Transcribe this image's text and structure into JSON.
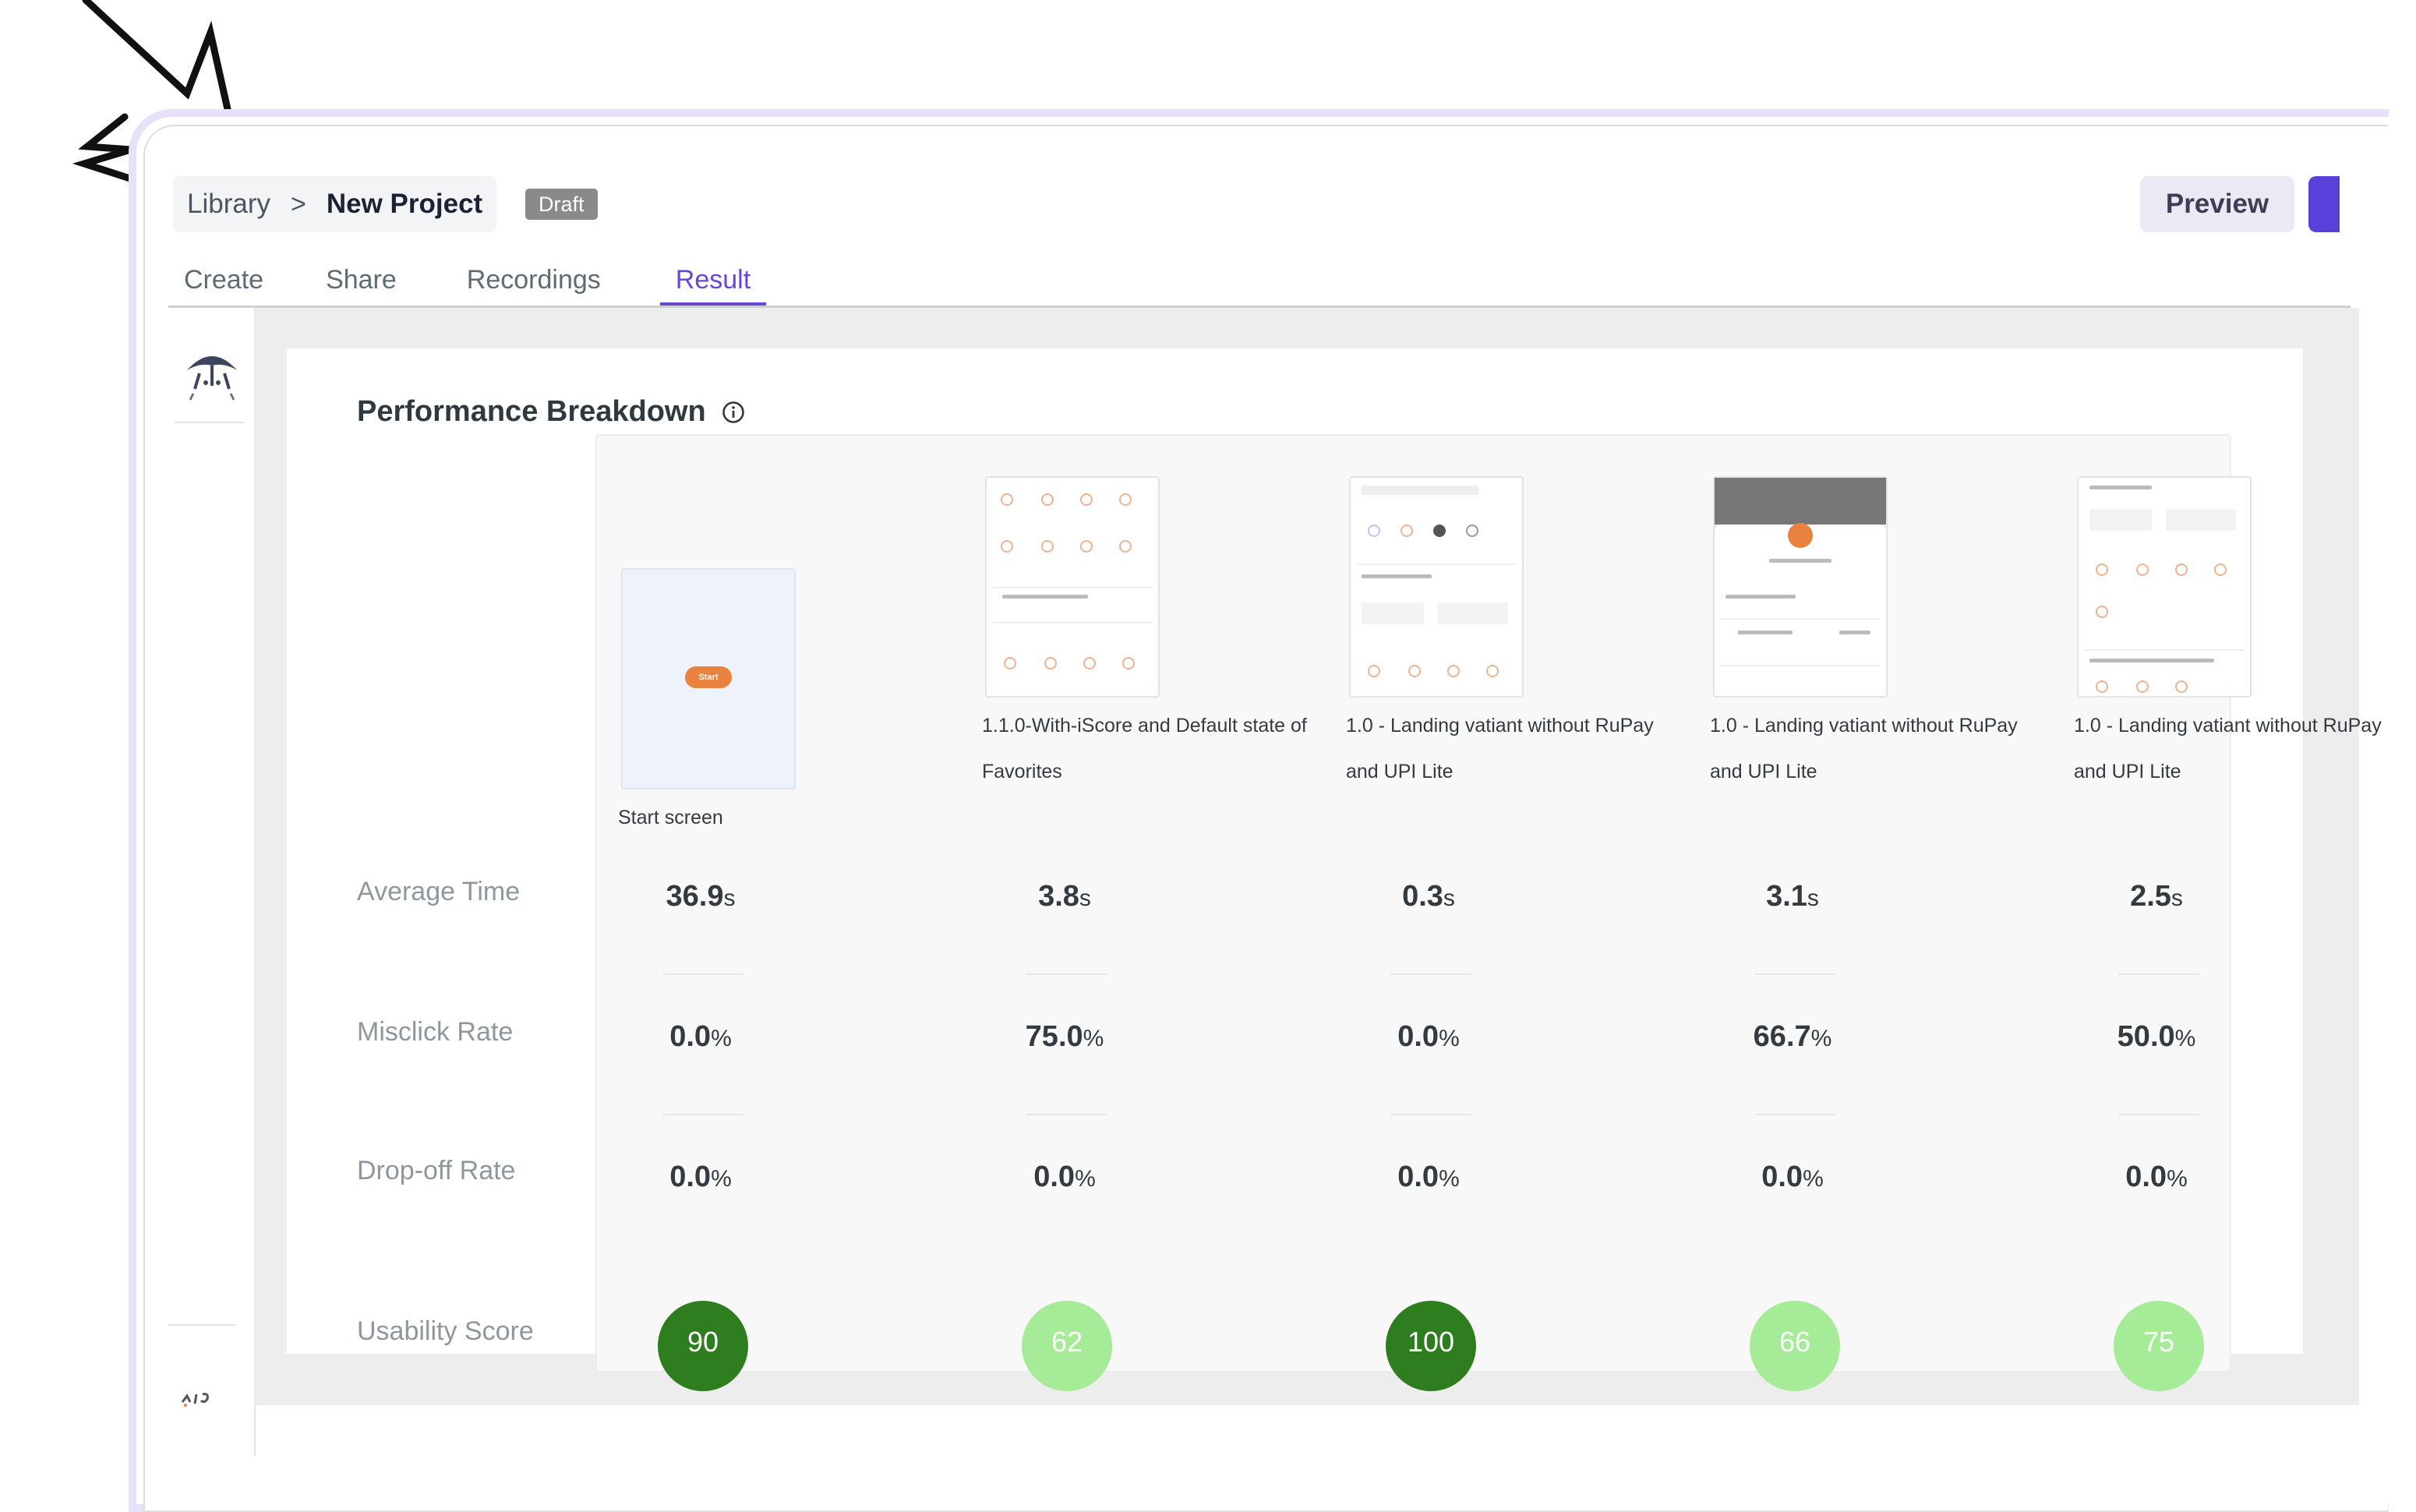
{
  "breadcrumb": {
    "root": "Library",
    "separator": ">",
    "current": "New Project",
    "status": "Draft"
  },
  "actions": {
    "preview": "Preview"
  },
  "tabs": [
    {
      "label": "Create",
      "active": false
    },
    {
      "label": "Share",
      "active": false
    },
    {
      "label": "Recordings",
      "active": false
    },
    {
      "label": "Result",
      "active": true
    }
  ],
  "section": {
    "title": "Performance Breakdown"
  },
  "row_labels": {
    "avg_time": "Average Time",
    "misclick": "Misclick Rate",
    "dropoff": "Drop-off Rate",
    "usability": "Usability Score"
  },
  "start_button_label": "Start",
  "screens": [
    {
      "caption": "Start screen",
      "avg_time": "36.9",
      "time_unit": "s",
      "misclick": "0.0",
      "dropoff": "0.0",
      "pct_unit": "%",
      "score": "90",
      "score_color": "#2e7d1f",
      "score_text_color": "#ffffff"
    },
    {
      "caption": "1.1.0-With-iScore and Default state of Favorites",
      "avg_time": "3.8",
      "time_unit": "s",
      "misclick": "75.0",
      "dropoff": "0.0",
      "pct_unit": "%",
      "score": "62",
      "score_color": "#a6eb98",
      "score_text_color": "#ffffff"
    },
    {
      "caption": "1.0 - Landing vatiant without RuPay and UPI Lite",
      "avg_time": "0.3",
      "time_unit": "s",
      "misclick": "0.0",
      "dropoff": "0.0",
      "pct_unit": "%",
      "score": "100",
      "score_color": "#2e7d1f",
      "score_text_color": "#ffffff"
    },
    {
      "caption": "1.0 - Landing vatiant without RuPay and UPI Lite",
      "avg_time": "3.1",
      "time_unit": "s",
      "misclick": "66.7",
      "dropoff": "0.0",
      "pct_unit": "%",
      "score": "66",
      "score_color": "#a6eb98",
      "score_text_color": "#ffffff"
    },
    {
      "caption": "1.0 - Landing vatiant without RuPay and UPI Lite",
      "avg_time": "2.5",
      "time_unit": "s",
      "misclick": "50.0",
      "dropoff": "0.0",
      "pct_unit": "%",
      "score": "75",
      "score_color": "#a6eb98",
      "score_text_color": "#ffffff"
    }
  ],
  "colors": {
    "accent": "#6a46d6",
    "primary_button": "#5b3fd9",
    "draft_badge": "#8a8a8a",
    "start_pill": "#e9823e"
  }
}
